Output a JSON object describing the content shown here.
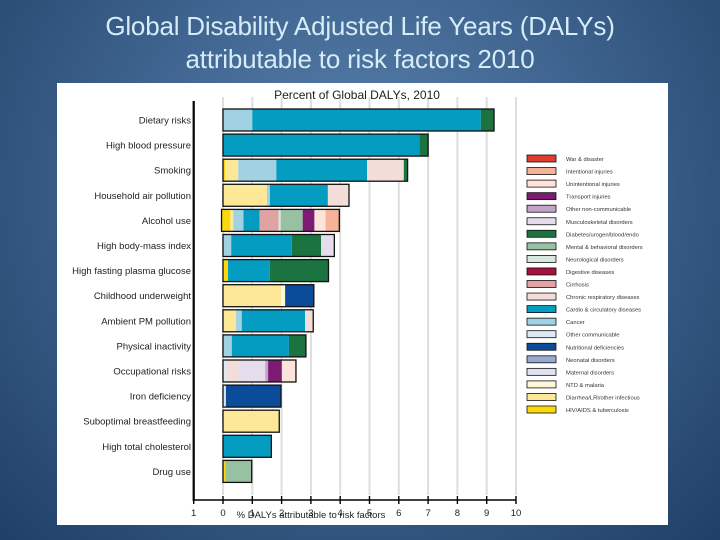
{
  "slide": {
    "title_line1": "Global Disability Adjusted Life Years (DALYs)",
    "title_line2": "attributable to risk factors 2010"
  },
  "chart_data": {
    "type": "bar",
    "orientation": "horizontal-stacked",
    "title": "Percent of Global DALYs, 2010",
    "xlabel": "% DALYs attributable to risk factors",
    "ylabel": "",
    "xlim": [
      -1,
      10
    ],
    "xticks": [
      -1,
      0,
      1,
      2,
      3,
      4,
      5,
      6,
      7,
      8,
      9,
      10
    ],
    "xtick_labels": [
      "1",
      "0",
      "1",
      "2",
      "3",
      "4",
      "5",
      "6",
      "7",
      "8",
      "9",
      "10"
    ],
    "grid": "vertical",
    "legend_position": "right",
    "causes": [
      {
        "name": "War & disaster",
        "color": "#e03c31"
      },
      {
        "name": "Intentional injuries",
        "color": "#f7b39a"
      },
      {
        "name": "Unintentional injuries",
        "color": "#fde4da"
      },
      {
        "name": "Transport injuries",
        "color": "#7d1a74"
      },
      {
        "name": "Other non-communicable",
        "color": "#c3a4c8"
      },
      {
        "name": "Musculoskeletal disorders",
        "color": "#e6ddec"
      },
      {
        "name": "Diabetes/urogen/blood/endo",
        "color": "#1b7340"
      },
      {
        "name": "Mental & behavioral disorders",
        "color": "#98c0a3"
      },
      {
        "name": "Neurological disorders",
        "color": "#d6e8df"
      },
      {
        "name": "Digestive diseases",
        "color": "#a5123b"
      },
      {
        "name": "Cirrhosis",
        "color": "#e0a3a3"
      },
      {
        "name": "Chronic respiratory diseases",
        "color": "#f3ddd8"
      },
      {
        "name": "Cardio & circulatory diseases",
        "color": "#049dc1"
      },
      {
        "name": "Cancer",
        "color": "#a1d2e3"
      },
      {
        "name": "Other communicable",
        "color": "#dcebf3"
      },
      {
        "name": "Nutritional deficiencies",
        "color": "#0b4c99"
      },
      {
        "name": "Neonatal disorders",
        "color": "#98a9d2"
      },
      {
        "name": "Maternal disorders",
        "color": "#dfe1f0"
      },
      {
        "name": "NTD & malaria",
        "color": "#fff7d9"
      },
      {
        "name": "Diarrhea/LRI/other infectious",
        "color": "#fde897"
      },
      {
        "name": "HIV/AIDS & tuberculosis",
        "color": "#fbd80a"
      }
    ],
    "categories": [
      "Dietary risks",
      "High blood pressure",
      "Smoking",
      "Household air pollution",
      "Alcohol use",
      "High body-mass index",
      "High fasting plasma glucose",
      "Childhood underweight",
      "Ambient PM pollution",
      "Physical inactivity",
      "Occupational risks",
      "Iron deficiency",
      "Suboptimal breastfeeding",
      "High total cholesterol",
      "Drug use"
    ],
    "series": [
      {
        "category": "Dietary risks",
        "segments": [
          {
            "cause": "Cancer",
            "value": 1.0
          },
          {
            "cause": "Cardio & circulatory diseases",
            "value": 7.8
          },
          {
            "cause": "Diabetes/urogen/blood/endo",
            "value": 0.45
          }
        ]
      },
      {
        "category": "High blood pressure",
        "segments": [
          {
            "cause": "Cardio & circulatory diseases",
            "value": 6.7
          },
          {
            "cause": "Diabetes/urogen/blood/endo",
            "value": 0.3
          }
        ]
      },
      {
        "category": "Smoking",
        "segments": [
          {
            "cause": "HIV/AIDS & tuberculosis",
            "value": 0.07
          },
          {
            "cause": "Diarrhea/LRI/other infectious",
            "value": 0.45
          },
          {
            "cause": "Cancer",
            "value": 1.3
          },
          {
            "cause": "Cardio & circulatory diseases",
            "value": 3.1
          },
          {
            "cause": "Chronic respiratory diseases",
            "value": 1.25
          },
          {
            "cause": "Diabetes/urogen/blood/endo",
            "value": 0.13
          }
        ]
      },
      {
        "category": "Household air pollution",
        "segments": [
          {
            "cause": "Diarrhea/LRI/other infectious",
            "value": 1.5
          },
          {
            "cause": "Cancer",
            "value": 0.1
          },
          {
            "cause": "Cardio & circulatory diseases",
            "value": 1.98
          },
          {
            "cause": "Chronic respiratory diseases",
            "value": 0.72
          }
        ]
      },
      {
        "category": "Alcohol use",
        "start": -0.05,
        "segments": [
          {
            "cause": "HIV/AIDS & tuberculosis",
            "value": 0.3
          },
          {
            "cause": "Diarrhea/LRI/other infectious",
            "value": 0.1
          },
          {
            "cause": "Cancer",
            "value": 0.35
          },
          {
            "cause": "Cardio & circulatory diseases",
            "value": 0.55
          },
          {
            "cause": "Cirrhosis",
            "value": 0.65
          },
          {
            "cause": "Neurological disorders",
            "value": 0.07
          },
          {
            "cause": "Mental & behavioral disorders",
            "value": 0.75
          },
          {
            "cause": "Transport injuries",
            "value": 0.4
          },
          {
            "cause": "Unintentional injuries",
            "value": 0.38
          },
          {
            "cause": "Intentional injuries",
            "value": 0.47
          }
        ]
      },
      {
        "category": "High body-mass index",
        "segments": [
          {
            "cause": "Cancer",
            "value": 0.28
          },
          {
            "cause": "Cardio & circulatory diseases",
            "value": 2.07
          },
          {
            "cause": "Diabetes/urogen/blood/endo",
            "value": 1.0
          },
          {
            "cause": "Musculoskeletal disorders",
            "value": 0.45
          }
        ]
      },
      {
        "category": "High fasting plasma glucose",
        "segments": [
          {
            "cause": "HIV/AIDS & tuberculosis",
            "value": 0.17
          },
          {
            "cause": "Cardio & circulatory diseases",
            "value": 1.43
          },
          {
            "cause": "Diabetes/urogen/blood/endo",
            "value": 2.0
          }
        ]
      },
      {
        "category": "Childhood underweight",
        "segments": [
          {
            "cause": "Diarrhea/LRI/other infectious",
            "value": 1.98
          },
          {
            "cause": "NTD & malaria",
            "value": 0.14
          },
          {
            "cause": "Nutritional deficiencies",
            "value": 0.98
          }
        ]
      },
      {
        "category": "Ambient PM pollution",
        "segments": [
          {
            "cause": "Diarrhea/LRI/other infectious",
            "value": 0.44
          },
          {
            "cause": "Cancer",
            "value": 0.2
          },
          {
            "cause": "Cardio & circulatory diseases",
            "value": 2.16
          },
          {
            "cause": "Chronic respiratory diseases",
            "value": 0.28
          }
        ]
      },
      {
        "category": "Physical inactivity",
        "segments": [
          {
            "cause": "Cancer",
            "value": 0.3
          },
          {
            "cause": "Cardio & circulatory diseases",
            "value": 1.95
          },
          {
            "cause": "Diabetes/urogen/blood/endo",
            "value": 0.58
          }
        ]
      },
      {
        "category": "Occupational risks",
        "segments": [
          {
            "cause": "Other communicable",
            "value": 0.12
          },
          {
            "cause": "Chronic respiratory diseases",
            "value": 0.42
          },
          {
            "cause": "Musculoskeletal disorders",
            "value": 0.9
          },
          {
            "cause": "Other non-communicable",
            "value": 0.1
          },
          {
            "cause": "Transport injuries",
            "value": 0.47
          },
          {
            "cause": "Unintentional injuries",
            "value": 0.48
          }
        ]
      },
      {
        "category": "Iron deficiency",
        "segments": [
          {
            "cause": "Maternal disorders",
            "value": 0.1
          },
          {
            "cause": "Nutritional deficiencies",
            "value": 1.88
          }
        ]
      },
      {
        "category": "Suboptimal breastfeeding",
        "segments": [
          {
            "cause": "Diarrhea/LRI/other infectious",
            "value": 1.92
          }
        ]
      },
      {
        "category": "High total cholesterol",
        "segments": [
          {
            "cause": "Cardio & circulatory diseases",
            "value": 1.65
          }
        ]
      },
      {
        "category": "Drug use",
        "segments": [
          {
            "cause": "HIV/AIDS & tuberculosis",
            "value": 0.08
          },
          {
            "cause": "Mental & behavioral disorders",
            "value": 0.9
          }
        ]
      }
    ]
  }
}
